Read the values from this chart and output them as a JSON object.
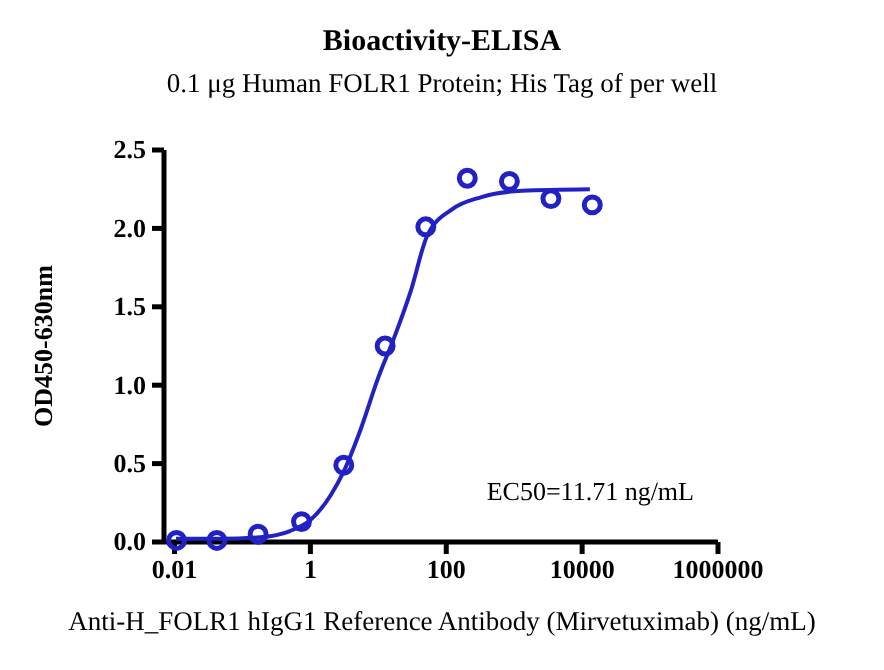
{
  "chart_data": {
    "type": "scatter",
    "title": "Bioactivity-ELISA",
    "subtitle": "0.1 μg Human FOLR1 Protein; His Tag of per well",
    "xlabel": "Anti-H_FOLR1 hIgG1 Reference Antibody (Mirvetuximab) (ng/mL)",
    "ylabel": "OD450-630nm",
    "log": "x",
    "xlim": [
      0.007,
      1000000
    ],
    "xticks": [
      {
        "value": 0.01,
        "label": "0.01"
      },
      {
        "value": 1,
        "label": "1"
      },
      {
        "value": 100,
        "label": "100"
      },
      {
        "value": 10000,
        "label": "10000"
      },
      {
        "value": 1000000,
        "label": "1000000"
      }
    ],
    "ylim": [
      0,
      2.5
    ],
    "yticks": [
      {
        "value": 0,
        "label": "0.0"
      },
      {
        "value": 0.5,
        "label": "0.5"
      },
      {
        "value": 1,
        "label": "1.0"
      },
      {
        "value": 1.5,
        "label": "1.5"
      },
      {
        "value": 2,
        "label": "2.0"
      },
      {
        "value": 2.5,
        "label": "2.5"
      }
    ],
    "grid": false,
    "annotations": [
      "EC50=11.71 ng/mL"
    ],
    "series": [
      {
        "marker": "circle",
        "color": "#2222c4",
        "x": [
          0.0107,
          0.042,
          0.17,
          0.74,
          3.1,
          12.6,
          50,
          204,
          850,
          3470,
          14100
        ],
        "values": [
          0.01,
          0.01,
          0.05,
          0.13,
          0.49,
          1.25,
          2.01,
          2.32,
          2.3,
          2.19,
          2.15
        ]
      },
      {
        "type": "line",
        "marker": "none",
        "color": "#2222c4",
        "x": [
          0.0105,
          0.047,
          0.18,
          0.5,
          1,
          2,
          3.1,
          5.3,
          10,
          17,
          30,
          52,
          120,
          330,
          1300,
          13000
        ],
        "values": [
          0.02,
          0.02,
          0.03,
          0.07,
          0.14,
          0.3,
          0.45,
          0.7,
          1.05,
          1.3,
          1.6,
          1.95,
          2.12,
          2.2,
          2.24,
          2.25
        ]
      }
    ]
  }
}
